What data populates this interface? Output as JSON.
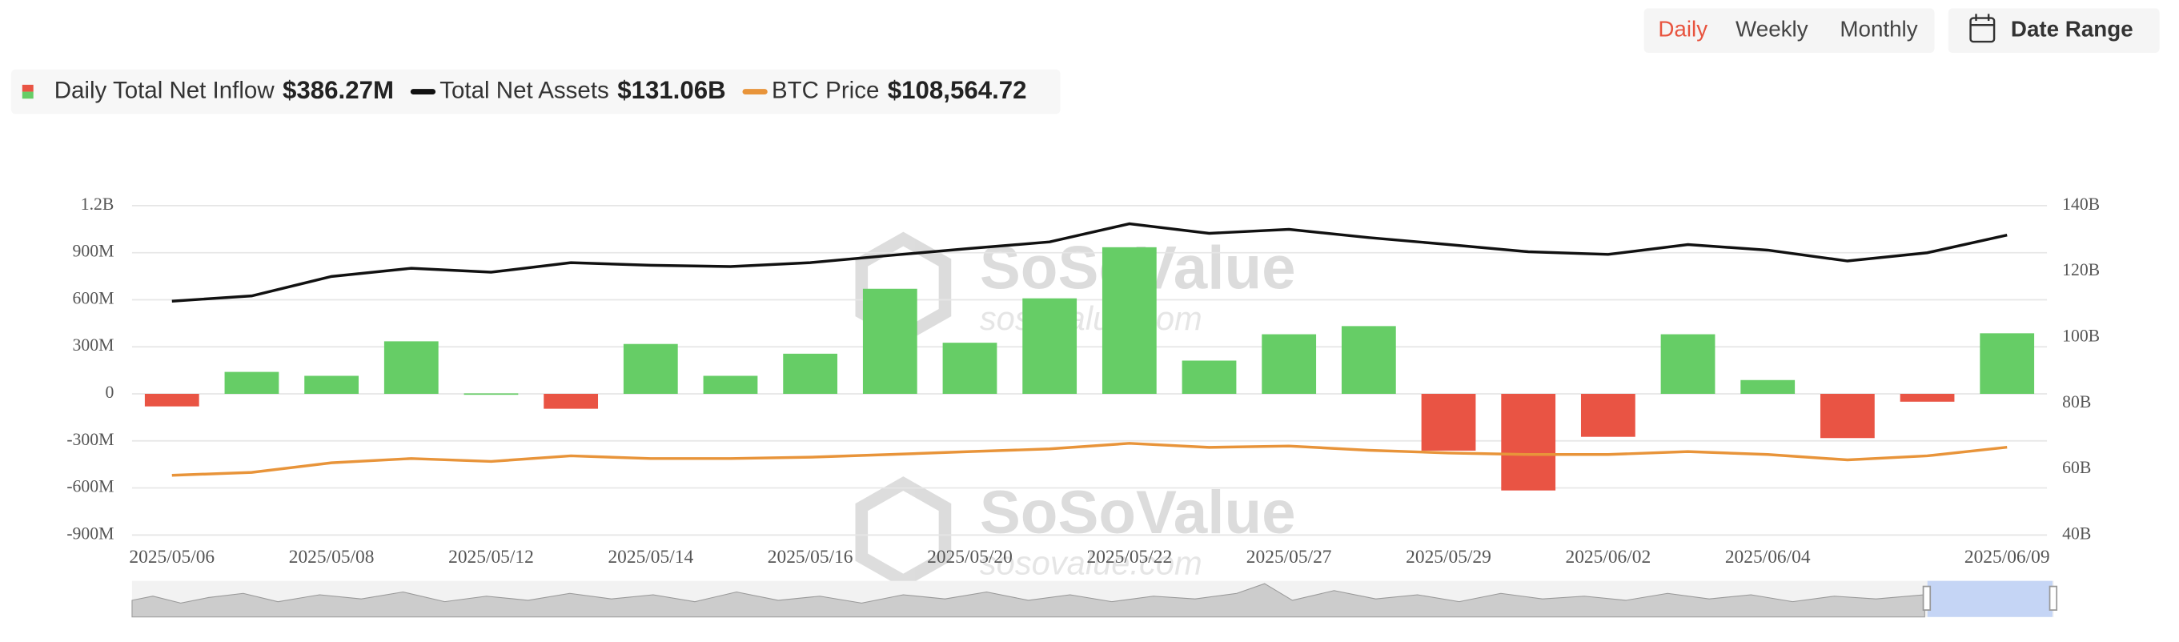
{
  "header": {
    "buttons": [
      "Daily",
      "Weekly",
      "Monthly"
    ],
    "date_range": "Date Range"
  },
  "watermark": {
    "brand": "SoSoValue",
    "site": "sosovalue.com"
  },
  "chart_data": {
    "type": "bar",
    "categories": [
      "2025/05/06",
      null,
      "2025/05/08",
      null,
      "2025/05/12",
      null,
      "2025/05/14",
      null,
      "2025/05/16",
      null,
      "2025/05/20",
      null,
      "2025/05/22",
      null,
      "2025/05/27",
      null,
      "2025/05/29",
      null,
      "2025/06/02",
      null,
      "2025/06/04",
      null,
      null,
      "2025/06/09"
    ],
    "series": [
      {
        "name": "Daily Total Net Inflow",
        "current_label": "$386.27M",
        "type": "bar",
        "color": "#66cd66",
        "negative_color": "#e95444",
        "values": [
          -80000000,
          140000000,
          115000000,
          335000000,
          3000000,
          -95000000,
          318000000,
          115000000,
          256000000,
          670000000,
          326000000,
          609000000,
          935000000,
          212000000,
          380000000,
          432000000,
          -362000000,
          -616000000,
          -274000000,
          380000000,
          88000000,
          -282000000,
          -50000000,
          386270000
        ]
      },
      {
        "name": "Total Net Assets",
        "current_label": "$131.06B",
        "type": "line",
        "axis": "y2",
        "color": "#111111",
        "values": [
          111000000000,
          112600000000,
          118500000000,
          121000000000,
          119800000000,
          122700000000,
          121900000000,
          121500000000,
          122700000000,
          124900000000,
          127000000000,
          129000000000,
          134500000000,
          131600000000,
          132800000000,
          130300000000,
          128200000000,
          126000000000,
          125200000000,
          128200000000,
          126500000000,
          123200000000,
          125700000000,
          131060000000
        ]
      },
      {
        "name": "BTC Price",
        "current_label": "$108,564.72",
        "type": "line",
        "axis": "y3",
        "color": "#e8943a",
        "values": [
          94000,
          95500,
          100500,
          102700,
          101200,
          104100,
          102700,
          102700,
          103400,
          104800,
          106300,
          107700,
          110600,
          108500,
          109200,
          107000,
          105600,
          104800,
          104800,
          106300,
          104800,
          102000,
          104100,
          108564.72
        ]
      }
    ],
    "ylim": [
      -900000000,
      1200000000
    ],
    "yticks": [
      {
        "value": -900000000,
        "label": "-900M"
      },
      {
        "value": -600000000,
        "label": "-600M"
      },
      {
        "value": -300000000,
        "label": "-300M"
      },
      0,
      {
        "value": 300000000,
        "label": "300M"
      },
      {
        "value": 600000000,
        "label": "600M"
      },
      {
        "value": 900000000,
        "label": "900M"
      },
      {
        "value": 1200000000,
        "label": "1.2B"
      }
    ],
    "y2lim": [
      40000000000,
      140000000000
    ],
    "y2ticks": [
      {
        "value": 40000000000,
        "label": "40B"
      },
      {
        "value": 60000000000,
        "label": "60B"
      },
      {
        "value": 80000000000,
        "label": "80B"
      },
      {
        "value": 100000000000,
        "label": "100B"
      },
      {
        "value": 120000000000,
        "label": "120B"
      },
      {
        "value": 140000000000,
        "label": "140B"
      }
    ],
    "y3lim": [
      63000,
      234000
    ],
    "grid": true
  }
}
